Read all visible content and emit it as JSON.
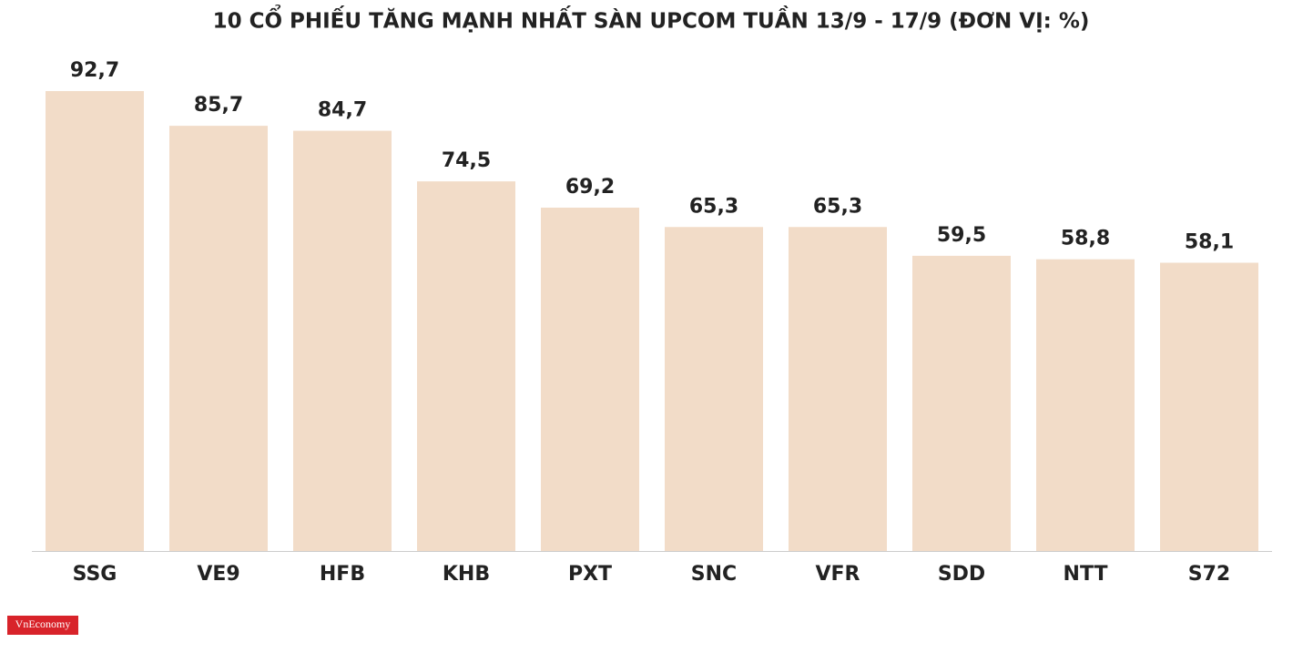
{
  "chart_data": {
    "type": "bar",
    "title": "10 CỔ PHIẾU TĂNG MẠNH NHẤT SÀN UPCOM TUẦN 13/9 - 17/9 (ĐƠN VỊ: %)",
    "categories": [
      "SSG",
      "VE9",
      "HFB",
      "KHB",
      "PXT",
      "SNC",
      "VFR",
      "SDD",
      "NTT",
      "S72"
    ],
    "values": [
      92.7,
      85.7,
      84.7,
      74.5,
      69.2,
      65.3,
      65.3,
      59.5,
      58.8,
      58.1
    ],
    "value_labels": [
      "92,7",
      "85,7",
      "84,7",
      "74,5",
      "69,2",
      "65,3",
      "65,3",
      "59,5",
      "58,8",
      "58,1"
    ],
    "color": "#f2dcc8"
  },
  "logo": "VnEconomy"
}
